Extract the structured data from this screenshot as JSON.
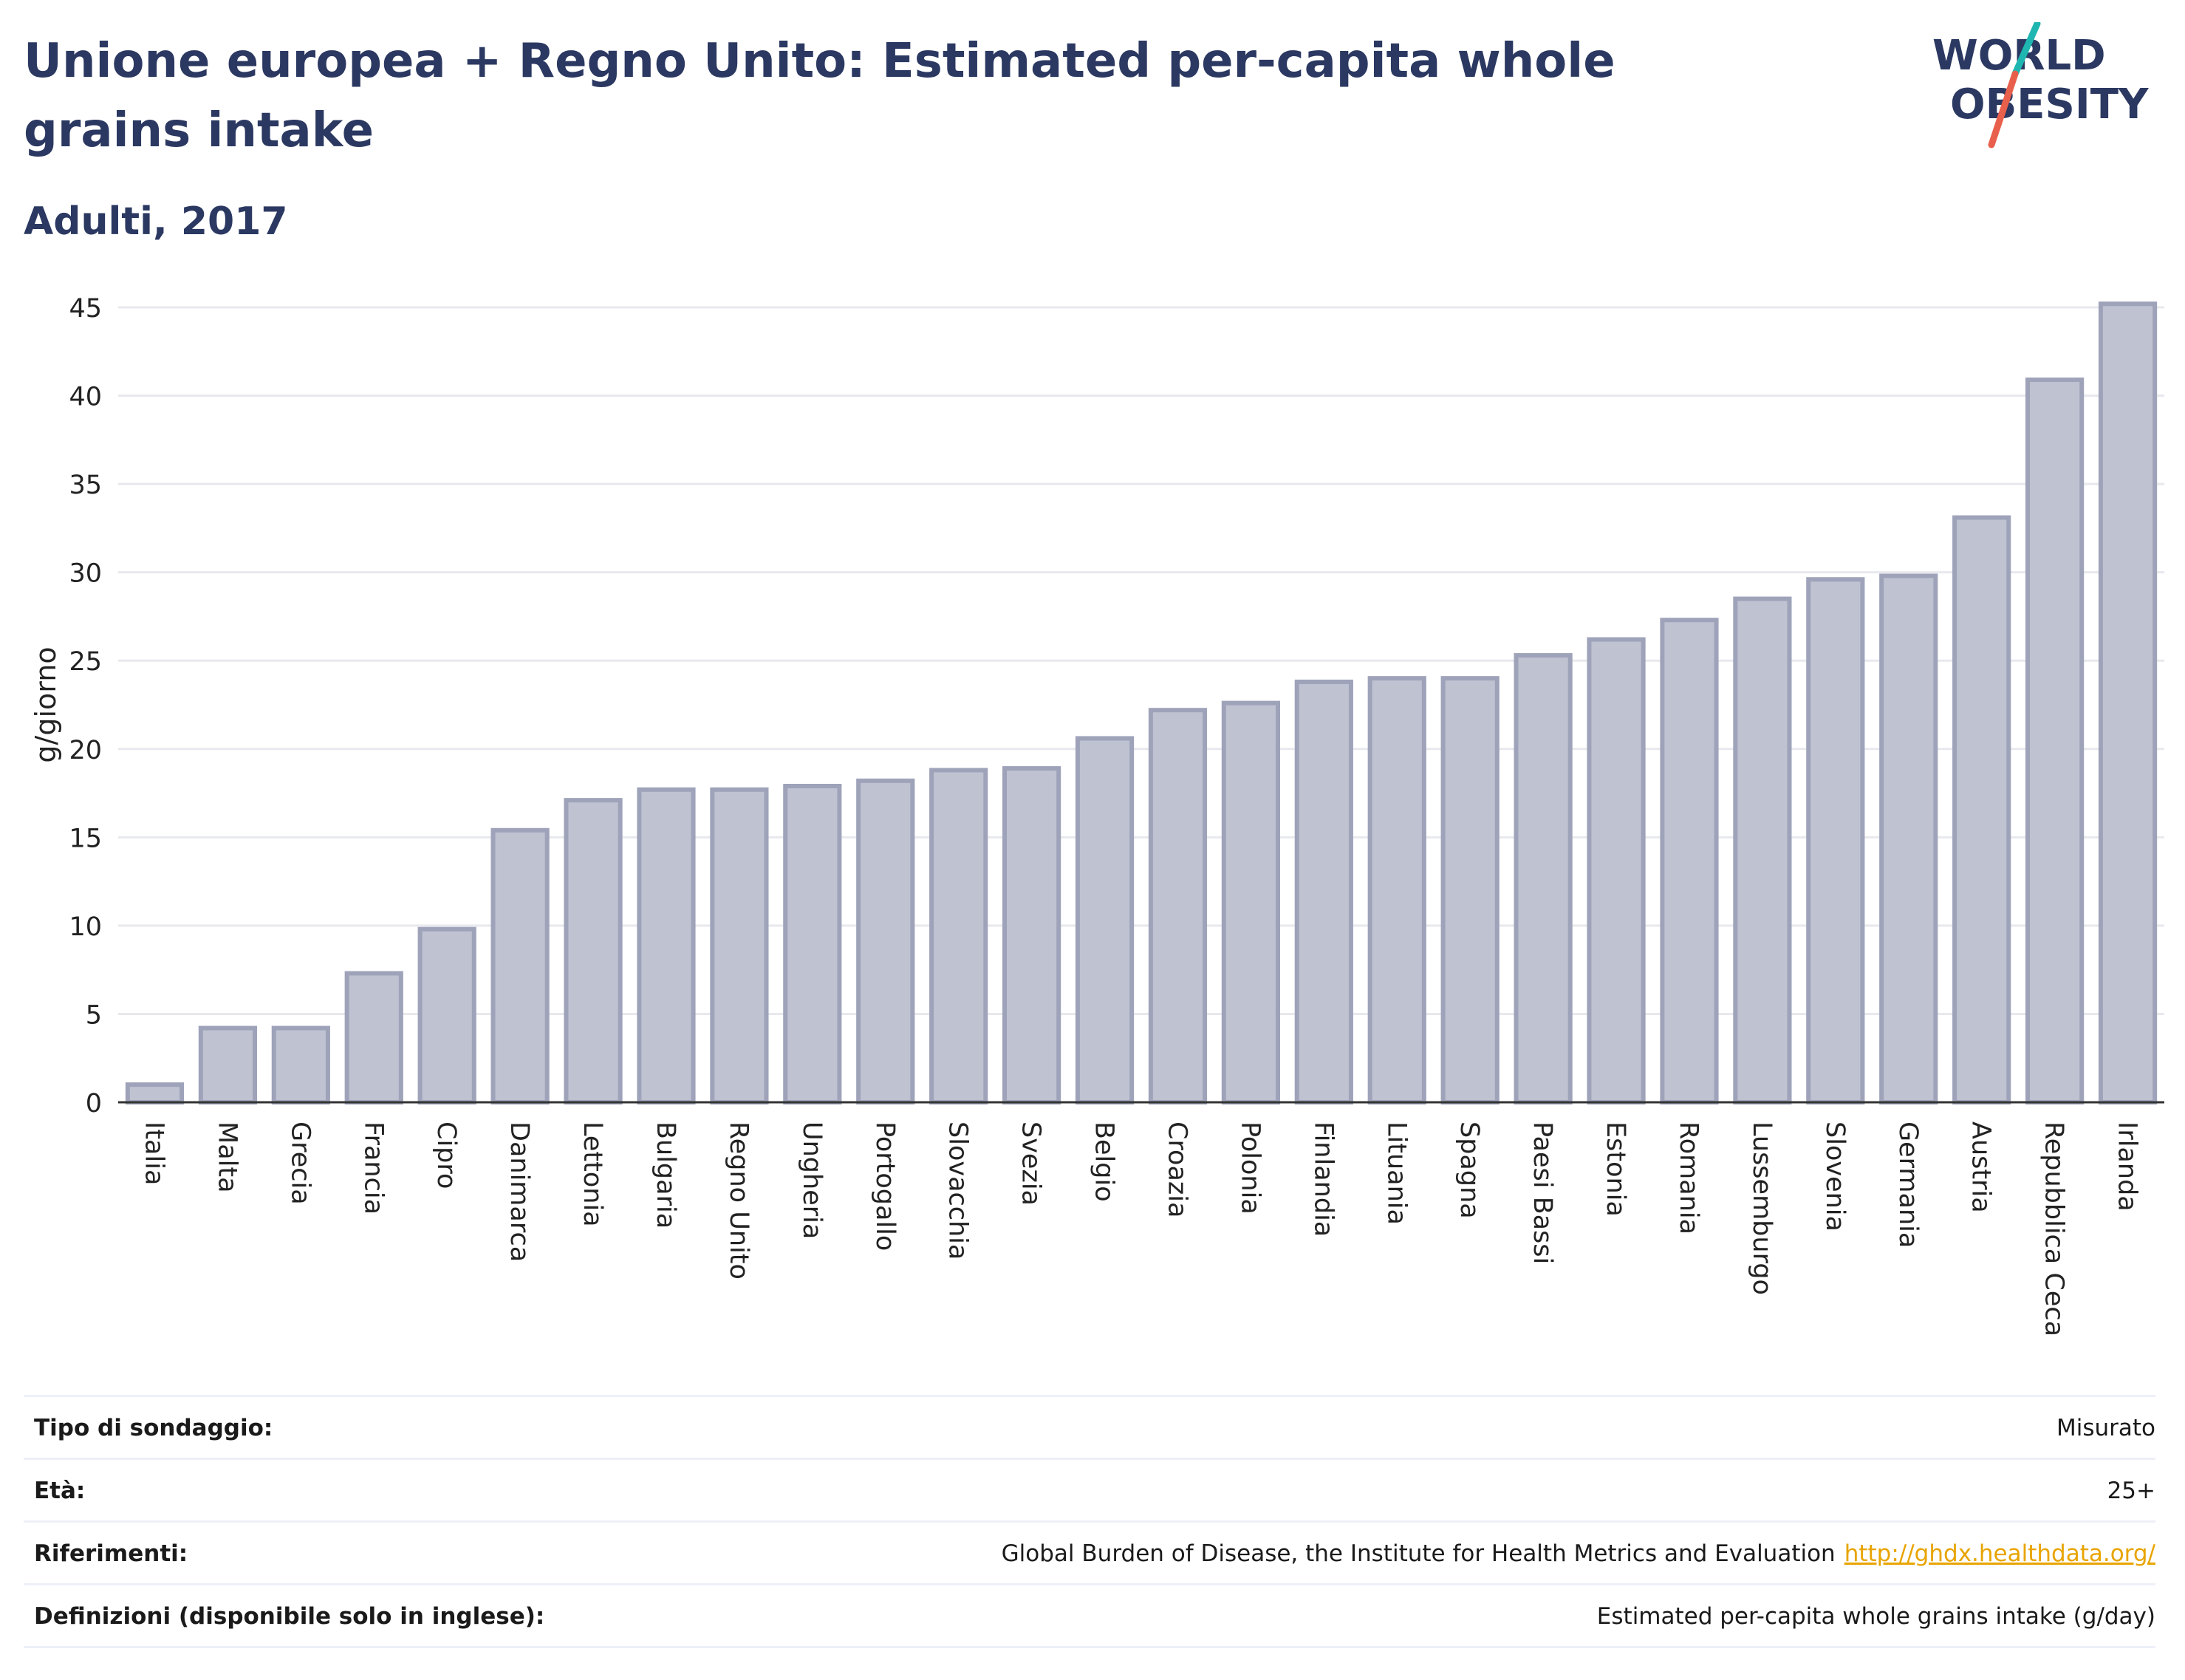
{
  "header": {
    "title": "Unione europea + Regno Unito: Estimated per-capita whole grains intake",
    "subtitle": "Adulti, 2017"
  },
  "logo": {
    "line1": "WORLD",
    "line2": "OBESITY",
    "accent_colors": [
      "#1fb6b1",
      "#e8604c"
    ],
    "text_color": "#2b3861"
  },
  "chart_data": {
    "type": "bar",
    "title": "Unione europea + Regno Unito: Estimated per-capita whole grains intake",
    "subtitle": "Adulti, 2017",
    "xlabel": "",
    "ylabel": "g/giorno",
    "ylim": [
      0,
      45
    ],
    "yticks": [
      0,
      5,
      10,
      15,
      20,
      25,
      30,
      35,
      40,
      45
    ],
    "grid": true,
    "bar_color": "#bfc2d1",
    "bar_edge_color": "#9ea3ba",
    "categories": [
      "Italia",
      "Malta",
      "Grecia",
      "Francia",
      "Cipro",
      "Danimarca",
      "Lettonia",
      "Bulgaria",
      "Regno Unito",
      "Ungheria",
      "Portogallo",
      "Slovacchia",
      "Svezia",
      "Belgio",
      "Croazia",
      "Polonia",
      "Finlandia",
      "Lituania",
      "Spagna",
      "Paesi Bassi",
      "Estonia",
      "Romania",
      "Lussemburgo",
      "Slovenia",
      "Germania",
      "Austria",
      "Repubblica Ceca",
      "Irlanda"
    ],
    "values": [
      1.0,
      4.2,
      4.2,
      7.3,
      9.8,
      15.4,
      17.1,
      17.7,
      17.7,
      17.9,
      18.2,
      18.8,
      18.9,
      20.6,
      22.2,
      22.6,
      23.8,
      24.0,
      24.0,
      25.3,
      26.2,
      27.3,
      28.5,
      29.6,
      29.8,
      33.1,
      40.9,
      45.2
    ]
  },
  "info_table": [
    {
      "label": "Tipo di sondaggio:",
      "value": "Misurato",
      "link": ""
    },
    {
      "label": "Età:",
      "value": "25+",
      "link": ""
    },
    {
      "label": "Riferimenti:",
      "value": "Global Burden of Disease, the Institute for Health Metrics and Evaluation",
      "link": "http://ghdx.healthdata.org/"
    },
    {
      "label": "Definizioni (disponibile solo in inglese):",
      "value": "Estimated per-capita whole grains intake (g/day)",
      "link": ""
    }
  ]
}
